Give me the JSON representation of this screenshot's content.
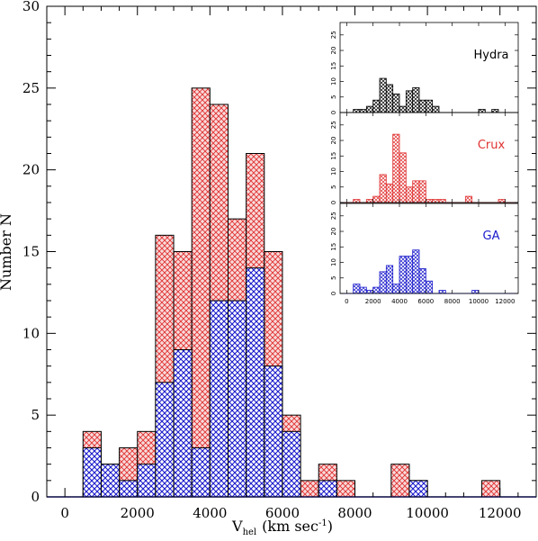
{
  "chart_data": [
    {
      "type": "bar",
      "variant": "stacked-histogram",
      "x_axis": {
        "label_main": "V",
        "label_sub": "hel",
        "label_units": "(km sec",
        "label_exp": "-1",
        "label_close": ")",
        "range": [
          -500,
          13000
        ],
        "ticks": [
          0,
          2000,
          4000,
          6000,
          8000,
          10000,
          12000
        ]
      },
      "y_axis": {
        "label": "Number N",
        "range": [
          0,
          30
        ],
        "ticks": [
          0,
          5,
          10,
          15,
          20,
          25,
          30
        ]
      },
      "bin_width": 500,
      "bin_starts": [
        500,
        1000,
        1500,
        2000,
        2500,
        3000,
        3500,
        4000,
        4500,
        5000,
        5500,
        6000,
        6500,
        7000,
        7500,
        8000,
        8500,
        9000,
        9500,
        10000,
        10500,
        11000,
        11500
      ],
      "series": [
        {
          "key": "blue",
          "color": "#1a1acc",
          "pattern": "crosshatch",
          "values": [
            3,
            2,
            1,
            2,
            7,
            9,
            3,
            12,
            12,
            14,
            8,
            4,
            0,
            1,
            0,
            0,
            0,
            0,
            1,
            0,
            0,
            0,
            0
          ]
        },
        {
          "key": "total",
          "color": "#e03030",
          "pattern": "crosshatch",
          "values": [
            4,
            2,
            3,
            4,
            16,
            15,
            25,
            24,
            17,
            21,
            15,
            5,
            1,
            2,
            1,
            0,
            0,
            2,
            1,
            0,
            0,
            0,
            1
          ]
        }
      ],
      "grid": false
    },
    {
      "type": "bar",
      "variant": "inset-histograms",
      "x_axis": {
        "range": [
          -500,
          13000
        ],
        "ticks": [
          0,
          2000,
          4000,
          6000,
          8000,
          10000,
          12000
        ]
      },
      "y_axis": {
        "range": [
          0,
          29
        ],
        "ticks": [
          0,
          5,
          10,
          15,
          20,
          25
        ]
      },
      "bin_width": 500,
      "panels": [
        {
          "name": "Hydra",
          "color": "#000000",
          "bin_starts": [
            500,
            1000,
            1500,
            2000,
            2500,
            3000,
            3500,
            4000,
            4500,
            5000,
            5500,
            6000,
            6500,
            7000,
            7500,
            8000,
            8500,
            9000,
            9500,
            10000,
            10500,
            11000,
            11500,
            12000
          ],
          "values": [
            1,
            1,
            2,
            4,
            11,
            9,
            6,
            2,
            7,
            8,
            4,
            4,
            2,
            0,
            0,
            0,
            0,
            0,
            0,
            1,
            0,
            1,
            0,
            0
          ]
        },
        {
          "name": "Crux",
          "color": "#e03030",
          "bin_starts": [
            500,
            1000,
            1500,
            2000,
            2500,
            3000,
            3500,
            4000,
            4500,
            5000,
            5500,
            6000,
            6500,
            7000,
            7500,
            8000,
            8500,
            9000,
            9500,
            10000,
            10500,
            11000,
            11500,
            12000
          ],
          "values": [
            1,
            0,
            1,
            2,
            9,
            6,
            22,
            16,
            5,
            7,
            7,
            1,
            1,
            1,
            0,
            0,
            0,
            2,
            0,
            0,
            0,
            0,
            1,
            0
          ]
        },
        {
          "name": "GA",
          "color": "#1a1acc",
          "bin_starts": [
            500,
            1000,
            1500,
            2000,
            2500,
            3000,
            3500,
            4000,
            4500,
            5000,
            5500,
            6000,
            6500,
            7000,
            7500,
            8000,
            8500,
            9000,
            9500,
            10000,
            10500,
            11000,
            11500,
            12000
          ],
          "values": [
            3,
            2,
            1,
            2,
            7,
            9,
            3,
            12,
            12,
            14,
            8,
            4,
            0,
            1,
            0,
            0,
            0,
            0,
            1,
            0,
            0,
            0,
            0,
            0
          ]
        }
      ]
    }
  ]
}
